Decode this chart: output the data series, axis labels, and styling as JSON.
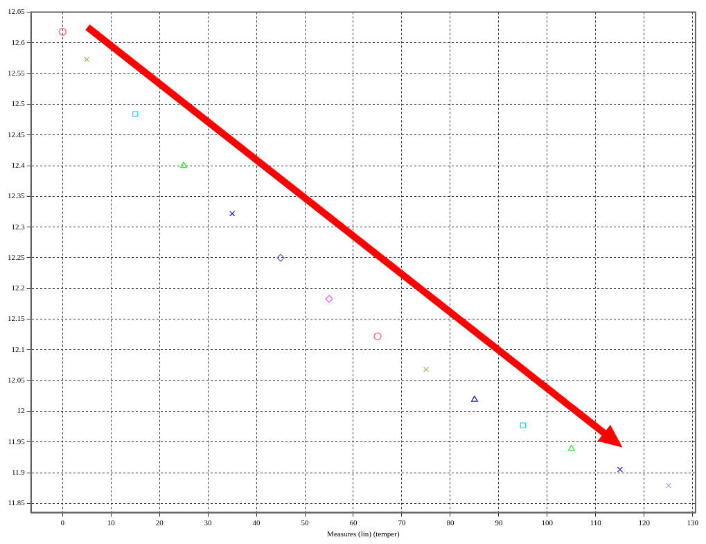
{
  "chart_data": {
    "type": "scatter",
    "xlabel": "Measures (lin) (temper)",
    "series": [
      {
        "x": [
          0,
          65
        ],
        "values": [
          12.618,
          12.122
        ],
        "color": "#ff6060",
        "marker": "circle"
      },
      {
        "x": [
          5,
          75
        ],
        "values": [
          12.573,
          12.068
        ],
        "color": "#c8a870",
        "marker": "cross"
      },
      {
        "x": [
          15,
          95
        ],
        "values": [
          12.484,
          11.977
        ],
        "color": "#20e0f0",
        "marker": "square"
      },
      {
        "x": [
          25,
          85,
          105
        ],
        "values": [
          12.4,
          12.019,
          11.939
        ],
        "colors": [
          "#30e030",
          "#1a2a9a",
          "#30e030"
        ],
        "marker": "triangle"
      },
      {
        "x": [
          35,
          115
        ],
        "values": [
          12.322,
          11.905
        ],
        "color": "#2020f0",
        "marker": "cross"
      },
      {
        "x": [
          45,
          55
        ],
        "values": [
          12.25,
          12.183
        ],
        "colors": [
          "#7070c0",
          "#f060f0"
        ],
        "marker": "diamond"
      },
      {
        "x": [
          125
        ],
        "values": [
          11.879
        ],
        "color": "#a8a0e0",
        "marker": "cross"
      }
    ],
    "xlim": [
      -6.5,
      130.6
    ],
    "xticks": [
      0,
      10,
      20,
      30,
      40,
      50,
      60,
      70,
      80,
      90,
      100,
      110,
      120,
      130
    ],
    "ylim": [
      11.835,
      12.65
    ],
    "yticks": [
      11.85,
      11.9,
      11.95,
      12,
      12.05,
      12.1,
      12.15,
      12.2,
      12.25,
      12.3,
      12.35,
      12.4,
      12.45,
      12.5,
      12.55,
      12.6,
      12.65
    ],
    "grid": true,
    "legend": false
  }
}
